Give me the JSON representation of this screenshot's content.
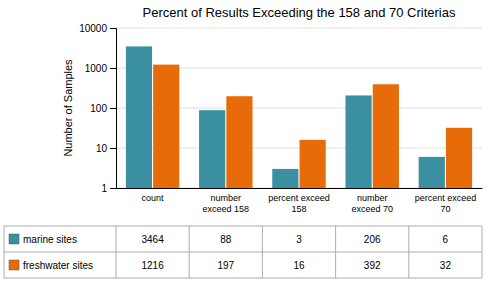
{
  "chart_data": {
    "type": "bar",
    "title": "Percent of Results Exceeding the 158 and 70 Criterias",
    "ylabel": "Number of Samples",
    "categories": [
      "count",
      "number\nexceed 158",
      "percent exceed\n158",
      "number\nexceed 70",
      "percent exceed\n70"
    ],
    "series": [
      {
        "name": "marine sites",
        "color": "#3a8fa0",
        "values": [
          3464,
          88,
          3,
          206,
          6
        ]
      },
      {
        "name": "freshwater sites",
        "color": "#e86b0a",
        "values": [
          1216,
          197,
          16,
          392,
          32
        ]
      }
    ],
    "log": "y",
    "ylim": [
      1,
      10000
    ],
    "yticks": [
      1,
      10,
      100,
      1000,
      10000
    ],
    "grid": true
  }
}
